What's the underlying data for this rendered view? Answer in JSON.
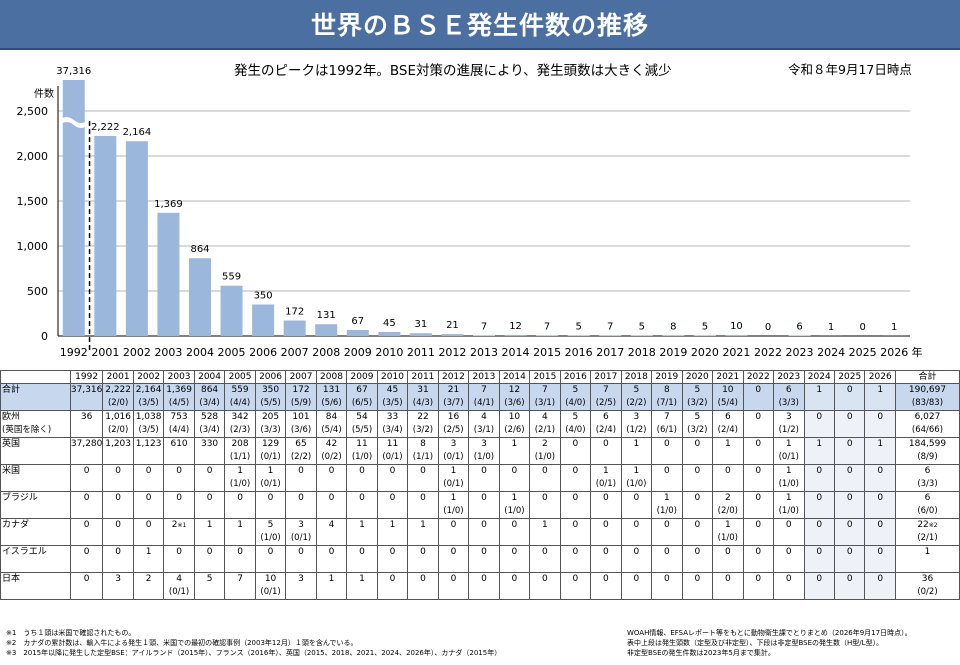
{
  "title": "世界のＢＳＥ発生件数の推移",
  "subtitle": "発生のピークは1992年。BSE対策の進展により、発生頭数は大きく減少",
  "as_of": "令和８年9月17日時点",
  "colors": {
    "bar": "#9bb7db",
    "title_bg": "#4a6fa0",
    "total_row": "#c6d7ee",
    "grid": "#b4b4b4"
  },
  "chart_data": {
    "type": "bar",
    "ylabel": "件数",
    "x_suffix": "年",
    "ylim": [
      0,
      2500
    ],
    "yticks": [
      0,
      500,
      1000,
      1500,
      2000,
      2500
    ],
    "axis_break": true,
    "categories": [
      "1992",
      "2001",
      "2002",
      "2003",
      "2004",
      "2005",
      "2006",
      "2007",
      "2008",
      "2009",
      "2010",
      "2011",
      "2012",
      "2013",
      "2014",
      "2015",
      "2016",
      "2017",
      "2018",
      "2019",
      "2020",
      "2021",
      "2022",
      "2023",
      "2024",
      "2025",
      "2026"
    ],
    "values": [
      37316,
      2222,
      2164,
      1369,
      864,
      559,
      350,
      172,
      131,
      67,
      45,
      31,
      21,
      7,
      12,
      7,
      5,
      7,
      5,
      8,
      5,
      10,
      0,
      6,
      1,
      0,
      1
    ],
    "labels": [
      "37,316",
      "2,222",
      "2,164",
      "1,369",
      "864",
      "559",
      "350",
      "172",
      "131",
      "67",
      "45",
      "31",
      "21",
      "7",
      "12",
      "7",
      "5",
      "7",
      "5",
      "8",
      "5",
      "10",
      "0",
      "6",
      "1",
      "0",
      "1"
    ]
  },
  "table": {
    "header": [
      "",
      "1992",
      "2001",
      "2002",
      "2003",
      "2004",
      "2005",
      "2006",
      "2007",
      "2008",
      "2009",
      "2010",
      "2011",
      "2012",
      "2013",
      "2014",
      "2015",
      "2016",
      "2017",
      "2018",
      "2019",
      "2020",
      "2021",
      "2022",
      "2023",
      "2024",
      "2025",
      "2026",
      "合計"
    ],
    "rows": [
      {
        "label": "合計",
        "total": true,
        "cells": [
          [
            "37,316",
            ""
          ],
          [
            "2,222",
            "(2/0)"
          ],
          [
            "2,164",
            "(3/5)"
          ],
          [
            "1,369",
            "(4/5)"
          ],
          [
            "864",
            "(3/4)"
          ],
          [
            "559",
            "(4/4)"
          ],
          [
            "350",
            "(5/5)"
          ],
          [
            "172",
            "(5/9)"
          ],
          [
            "131",
            "(5/6)"
          ],
          [
            "67",
            "(6/5)"
          ],
          [
            "45",
            "(3/5)"
          ],
          [
            "31",
            "(4/3)"
          ],
          [
            "21",
            "(3/7)"
          ],
          [
            "7",
            "(4/1)"
          ],
          [
            "12",
            "(3/6)"
          ],
          [
            "7",
            "(3/1)"
          ],
          [
            "5",
            "(4/0)"
          ],
          [
            "7",
            "(2/5)"
          ],
          [
            "5",
            "(2/2)"
          ],
          [
            "8",
            "(7/1)"
          ],
          [
            "5",
            "(3/2)"
          ],
          [
            "10",
            "(5/4)"
          ],
          [
            "0",
            ""
          ],
          [
            "6",
            "(3/3)"
          ],
          [
            "1",
            ""
          ],
          [
            "0",
            ""
          ],
          [
            "1",
            ""
          ],
          [
            "190,697",
            "(83/83)"
          ]
        ]
      },
      {
        "label": "欧州",
        "label2": "(英国を除く)",
        "cells": [
          [
            "36",
            ""
          ],
          [
            "1,016",
            "(2/0)"
          ],
          [
            "1,038",
            "(3/5)"
          ],
          [
            "753",
            "(4/4)"
          ],
          [
            "528",
            "(3/4)"
          ],
          [
            "342",
            "(2/3)"
          ],
          [
            "205",
            "(3/3)"
          ],
          [
            "101",
            "(3/6)"
          ],
          [
            "84",
            "(5/4)"
          ],
          [
            "54",
            "(5/5)"
          ],
          [
            "33",
            "(3/4)"
          ],
          [
            "22",
            "(3/2)"
          ],
          [
            "16",
            "(2/5)"
          ],
          [
            "4",
            "(3/1)"
          ],
          [
            "10",
            "(2/6)"
          ],
          [
            "4",
            "(2/1)"
          ],
          [
            "5",
            "(4/0)"
          ],
          [
            "6",
            "(2/4)"
          ],
          [
            "3",
            "(1/2)"
          ],
          [
            "7",
            "(6/1)"
          ],
          [
            "5",
            "(3/2)"
          ],
          [
            "6",
            "(2/4)"
          ],
          [
            "0",
            ""
          ],
          [
            "3",
            "(1/2)"
          ],
          [
            "0",
            ""
          ],
          [
            "0",
            ""
          ],
          [
            "0",
            ""
          ],
          [
            "6,027",
            "(64/66)"
          ]
        ]
      },
      {
        "label": "英国",
        "cells": [
          [
            "37,280",
            ""
          ],
          [
            "1,203",
            ""
          ],
          [
            "1,123",
            ""
          ],
          [
            "610",
            ""
          ],
          [
            "330",
            ""
          ],
          [
            "208",
            "(1/1)"
          ],
          [
            "129",
            "(0/1)"
          ],
          [
            "65",
            "(2/2)"
          ],
          [
            "42",
            "(0/2)"
          ],
          [
            "11",
            "(1/0)"
          ],
          [
            "11",
            "(0/1)"
          ],
          [
            "8",
            "(1/1)"
          ],
          [
            "3",
            "(0/1)"
          ],
          [
            "3",
            "(1/0)"
          ],
          [
            "1",
            ""
          ],
          [
            "2",
            "(1/0)"
          ],
          [
            "0",
            ""
          ],
          [
            "0",
            ""
          ],
          [
            "1",
            ""
          ],
          [
            "0",
            ""
          ],
          [
            "0",
            ""
          ],
          [
            "1",
            ""
          ],
          [
            "0",
            ""
          ],
          [
            "1",
            "(0/1)"
          ],
          [
            "1",
            ""
          ],
          [
            "0",
            ""
          ],
          [
            "1",
            ""
          ],
          [
            "184,599",
            "(8/9)"
          ]
        ]
      },
      {
        "label": "米国",
        "cells": [
          [
            "0",
            ""
          ],
          [
            "0",
            ""
          ],
          [
            "0",
            ""
          ],
          [
            "0",
            ""
          ],
          [
            "0",
            ""
          ],
          [
            "1",
            "(1/0)"
          ],
          [
            "1",
            "(0/1)"
          ],
          [
            "0",
            ""
          ],
          [
            "0",
            ""
          ],
          [
            "0",
            ""
          ],
          [
            "0",
            ""
          ],
          [
            "0",
            ""
          ],
          [
            "1",
            "(0/1)"
          ],
          [
            "0",
            ""
          ],
          [
            "0",
            ""
          ],
          [
            "0",
            ""
          ],
          [
            "0",
            ""
          ],
          [
            "1",
            "(0/1)"
          ],
          [
            "1",
            "(1/0)"
          ],
          [
            "0",
            ""
          ],
          [
            "0",
            ""
          ],
          [
            "0",
            ""
          ],
          [
            "0",
            ""
          ],
          [
            "1",
            "(1/0)"
          ],
          [
            "0",
            ""
          ],
          [
            "0",
            ""
          ],
          [
            "0",
            ""
          ],
          [
            "6",
            "(3/3)"
          ]
        ]
      },
      {
        "label": "ブラジル",
        "cells": [
          [
            "0",
            ""
          ],
          [
            "0",
            ""
          ],
          [
            "0",
            ""
          ],
          [
            "0",
            ""
          ],
          [
            "0",
            ""
          ],
          [
            "0",
            ""
          ],
          [
            "0",
            ""
          ],
          [
            "0",
            ""
          ],
          [
            "0",
            ""
          ],
          [
            "0",
            ""
          ],
          [
            "0",
            ""
          ],
          [
            "0",
            ""
          ],
          [
            "1",
            "(1/0)"
          ],
          [
            "0",
            ""
          ],
          [
            "1",
            "(1/0)"
          ],
          [
            "0",
            ""
          ],
          [
            "0",
            ""
          ],
          [
            "0",
            ""
          ],
          [
            "0",
            ""
          ],
          [
            "1",
            "(1/0)"
          ],
          [
            "0",
            ""
          ],
          [
            "2",
            "(2/0)"
          ],
          [
            "0",
            ""
          ],
          [
            "1",
            "(1/0)"
          ],
          [
            "0",
            ""
          ],
          [
            "0",
            ""
          ],
          [
            "0",
            ""
          ],
          [
            "6",
            "(6/0)"
          ]
        ]
      },
      {
        "label": "カナダ",
        "cells": [
          [
            "0",
            ""
          ],
          [
            "0",
            ""
          ],
          [
            "0",
            ""
          ],
          [
            "2",
            "",
            "※1"
          ],
          [
            "1",
            ""
          ],
          [
            "1",
            ""
          ],
          [
            "5",
            "(1/0)"
          ],
          [
            "3",
            "(0/1)"
          ],
          [
            "4",
            ""
          ],
          [
            "1",
            ""
          ],
          [
            "1",
            ""
          ],
          [
            "1",
            ""
          ],
          [
            "0",
            ""
          ],
          [
            "0",
            ""
          ],
          [
            "0",
            ""
          ],
          [
            "1",
            ""
          ],
          [
            "0",
            ""
          ],
          [
            "0",
            ""
          ],
          [
            "0",
            ""
          ],
          [
            "0",
            ""
          ],
          [
            "0",
            ""
          ],
          [
            "1",
            "(1/0)"
          ],
          [
            "0",
            ""
          ],
          [
            "0",
            ""
          ],
          [
            "0",
            ""
          ],
          [
            "0",
            ""
          ],
          [
            "0",
            ""
          ],
          [
            "22",
            "(2/1)",
            "※2"
          ]
        ]
      },
      {
        "label": "イスラエル",
        "cells": [
          [
            "0",
            ""
          ],
          [
            "0",
            ""
          ],
          [
            "1",
            ""
          ],
          [
            "0",
            ""
          ],
          [
            "0",
            ""
          ],
          [
            "0",
            ""
          ],
          [
            "0",
            ""
          ],
          [
            "0",
            ""
          ],
          [
            "0",
            ""
          ],
          [
            "0",
            ""
          ],
          [
            "0",
            ""
          ],
          [
            "0",
            ""
          ],
          [
            "0",
            ""
          ],
          [
            "0",
            ""
          ],
          [
            "0",
            ""
          ],
          [
            "0",
            ""
          ],
          [
            "0",
            ""
          ],
          [
            "0",
            ""
          ],
          [
            "0",
            ""
          ],
          [
            "0",
            ""
          ],
          [
            "0",
            ""
          ],
          [
            "0",
            ""
          ],
          [
            "0",
            ""
          ],
          [
            "0",
            ""
          ],
          [
            "0",
            ""
          ],
          [
            "0",
            ""
          ],
          [
            "0",
            ""
          ],
          [
            "1",
            ""
          ]
        ]
      },
      {
        "label": "日本",
        "cells": [
          [
            "0",
            ""
          ],
          [
            "3",
            ""
          ],
          [
            "2",
            ""
          ],
          [
            "4",
            "(0/1)"
          ],
          [
            "5",
            ""
          ],
          [
            "7",
            ""
          ],
          [
            "10",
            "(0/1)"
          ],
          [
            "3",
            ""
          ],
          [
            "1",
            ""
          ],
          [
            "1",
            ""
          ],
          [
            "0",
            ""
          ],
          [
            "0",
            ""
          ],
          [
            "0",
            ""
          ],
          [
            "0",
            ""
          ],
          [
            "0",
            ""
          ],
          [
            "0",
            ""
          ],
          [
            "0",
            ""
          ],
          [
            "0",
            ""
          ],
          [
            "0",
            ""
          ],
          [
            "0",
            ""
          ],
          [
            "0",
            ""
          ],
          [
            "0",
            ""
          ],
          [
            "0",
            ""
          ],
          [
            "0",
            ""
          ],
          [
            "0",
            ""
          ],
          [
            "0",
            ""
          ],
          [
            "0",
            ""
          ],
          [
            "36",
            "(0/2)"
          ]
        ]
      }
    ]
  },
  "notes_left": [
    "※1　うち１頭は米国で確認されたもの。",
    "※2　カナダの累計数は、輸入牛による発生１頭、米国での最初の確認事例（2003年12月）１頭を含んでいる。",
    "※3　2015年以降に発生した定型BSE：アイルランド（2015年）、フランス（2016年）、英国（2015、2018、2021、2024、2026年）、カナダ（2015年）"
  ],
  "notes_right": [
    "WOAH情報、EFSAレポート等をもとに動物衛生課でとりまとめ（2026年9月17日時点）。",
    "表中上段は発生頭数（定型及び非定型）、下段は非定型BSEの発生数（H型/L型）。",
    "非定型BSEの発生件数は2023年5月まで集計。"
  ]
}
